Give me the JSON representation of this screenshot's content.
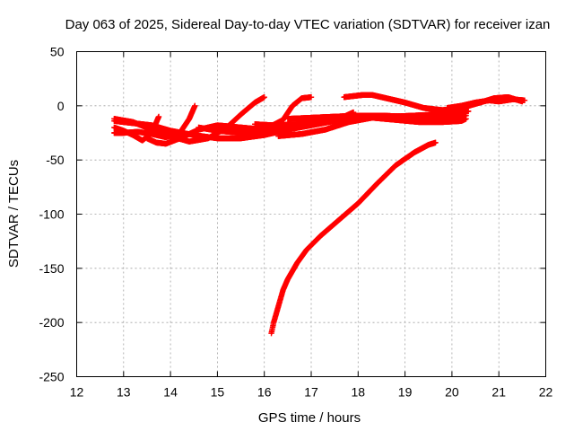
{
  "chart_data": {
    "type": "scatter",
    "title": "Day 063 of 2025, Sidereal Day-to-day VTEC variation (SDTVAR) for receiver izan",
    "xlabel": "GPS time / hours",
    "ylabel": "SDTVAR / TECUs",
    "xlim": [
      12,
      22
    ],
    "ylim": [
      -250,
      50
    ],
    "x_ticks": [
      "12",
      "13",
      "14",
      "15",
      "16",
      "17",
      "18",
      "19",
      "20",
      "21",
      "22"
    ],
    "y_ticks": [
      "50",
      "0",
      "-50",
      "-100",
      "-150",
      "-200",
      "-250"
    ],
    "grid": true,
    "marker": "plus",
    "color": "#ff0000",
    "series": [
      {
        "x": [
          12.8,
          13.0,
          13.2,
          13.4,
          13.6,
          13.75
        ],
        "y": [
          -20,
          -23,
          -27,
          -32,
          -25,
          -10
        ]
      },
      {
        "x": [
          12.8,
          13.0,
          13.3,
          13.6,
          13.9,
          14.2,
          14.4,
          14.52
        ],
        "y": [
          -25,
          -25,
          -24,
          -26,
          -29,
          -25,
          -12,
          0
        ]
      },
      {
        "x": [
          12.8,
          13.2,
          13.6,
          14.0,
          14.4,
          14.8,
          15.2,
          15.5,
          15.8,
          16.0
        ],
        "y": [
          -12,
          -15,
          -22,
          -28,
          -33,
          -30,
          -20,
          -8,
          3,
          8
        ]
      },
      {
        "x": [
          12.8,
          13.2,
          13.6,
          14.0,
          14.5,
          15.0,
          15.5,
          16.0,
          16.5,
          17.0,
          17.5,
          17.7
        ],
        "y": [
          -14,
          -16,
          -18,
          -23,
          -27,
          -30,
          -30,
          -27,
          -22,
          -17,
          -12,
          -10
        ]
      },
      {
        "x": [
          13.5,
          13.7,
          13.9,
          14.2,
          14.6,
          15.0,
          15.5,
          16.0,
          16.4,
          16.6,
          16.8,
          17.0
        ],
        "y": [
          -30,
          -34,
          -35,
          -30,
          -22,
          -18,
          -20,
          -22,
          -13,
          0,
          7,
          8
        ]
      },
      {
        "x": [
          14.6,
          15.0,
          15.5,
          16.0,
          16.5,
          17.0,
          17.5,
          17.9
        ],
        "y": [
          -20,
          -23,
          -25,
          -24,
          -22,
          -18,
          -14,
          -6
        ]
      },
      {
        "x": [
          15.8,
          16.2,
          16.7,
          17.2,
          17.7,
          18.2,
          18.7,
          19.2,
          19.7,
          20.2,
          20.35
        ],
        "y": [
          -17,
          -18,
          -17,
          -15,
          -12,
          -10,
          -10,
          -9,
          -8,
          -6,
          -5
        ]
      },
      {
        "x": [
          16.5,
          17.0,
          17.5,
          18.0,
          18.5,
          19.0,
          19.5,
          20.0,
          20.3
        ],
        "y": [
          -12,
          -11,
          -10,
          -9,
          -9,
          -10,
          -11,
          -11,
          -9
        ]
      },
      {
        "x": [
          16.3,
          16.8,
          17.3,
          17.8,
          18.3,
          18.8,
          19.3,
          19.8,
          20.2,
          20.3
        ],
        "y": [
          -28,
          -26,
          -22,
          -15,
          -11,
          -13,
          -15,
          -15,
          -14,
          -12
        ]
      },
      {
        "x": [
          17.7,
          17.9,
          18.1,
          18.3,
          18.6,
          19.0,
          19.4,
          19.8,
          20.2,
          20.6,
          20.9,
          21.2,
          21.5
        ],
        "y": [
          8,
          9,
          10,
          10,
          7,
          3,
          -2,
          -4,
          -2,
          3,
          7,
          8,
          4
        ]
      },
      {
        "x": [
          19.9,
          20.2,
          20.5,
          20.8,
          21.0,
          21.3,
          21.55
        ],
        "y": [
          -2,
          0,
          3,
          5,
          4,
          6,
          5
        ]
      },
      {
        "x": [
          16.15,
          16.2,
          16.3,
          16.4,
          16.5,
          16.7,
          16.9,
          17.2,
          17.6,
          18.0,
          18.4,
          18.8,
          19.2,
          19.5,
          19.65
        ],
        "y": [
          -210,
          -200,
          -185,
          -170,
          -160,
          -145,
          -133,
          -120,
          -105,
          -90,
          -72,
          -55,
          -43,
          -36,
          -34
        ]
      }
    ]
  }
}
